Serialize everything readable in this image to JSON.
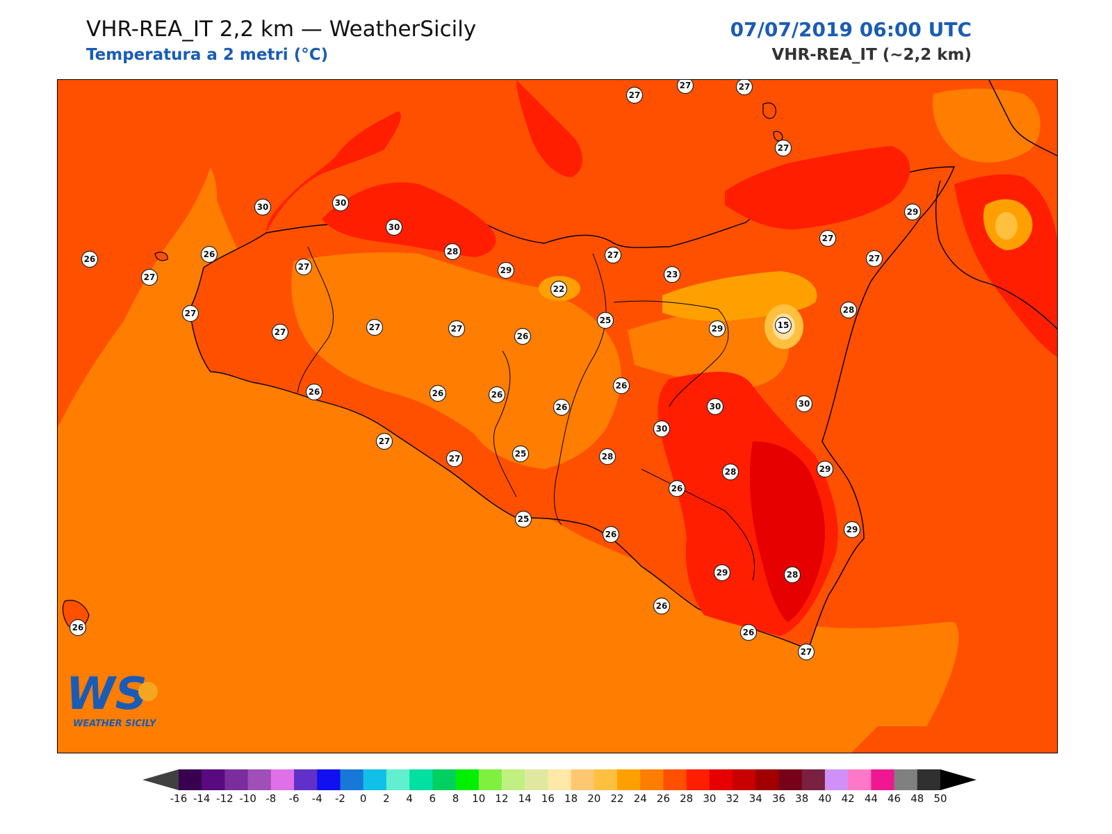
{
  "header": {
    "title": "VHR-REA_IT 2,2 km — WeatherSicily",
    "subtitle": "Temperatura a 2 metri (°C)",
    "datetime": "07/07/2019 06:00 UTC",
    "model": "VHR-REA_IT (~2,2 km)"
  },
  "logo": {
    "letters": "WS",
    "name": "WEATHER SICILY"
  },
  "colors": {
    "sea_base": "#ff5000",
    "warm_band": "#ff7d00",
    "hot": "#ff1e00",
    "very_hot": "#e60000",
    "cool": "#ffa000",
    "cooler": "#ffc040",
    "coolest": "#ffe0a0"
  },
  "colorbar": {
    "labels": [
      "-16",
      "-14",
      "-12",
      "-10",
      "-8",
      "-6",
      "-4",
      "-2",
      "0",
      "2",
      "4",
      "6",
      "8",
      "10",
      "12",
      "14",
      "16",
      "18",
      "20",
      "22",
      "24",
      "26",
      "28",
      "30",
      "32",
      "34",
      "36",
      "38",
      "40",
      "42",
      "44",
      "46",
      "48",
      "50"
    ],
    "colors": [
      "#3a0050",
      "#5a0a80",
      "#7b2d9e",
      "#a04fb8",
      "#e070e8",
      "#6030c8",
      "#1010f0",
      "#1878d8",
      "#10c0e8",
      "#60f0d0",
      "#00e0a0",
      "#00d060",
      "#00f000",
      "#80f040",
      "#c0f080",
      "#e0e8a0",
      "#ffe8a8",
      "#ffc870",
      "#ffc040",
      "#ffa000",
      "#ff7d00",
      "#ff5000",
      "#ff1e00",
      "#e60000",
      "#c80000",
      "#a00000",
      "#780018",
      "#7a2040",
      "#d090f8",
      "#ff78c8",
      "#f01890",
      "#808080",
      "#303030"
    ]
  },
  "stations": [
    {
      "value": "27"
    },
    {
      "value": "27"
    },
    {
      "value": "27"
    },
    {
      "value": "27"
    },
    {
      "value": "29"
    },
    {
      "value": "30"
    },
    {
      "value": "30"
    },
    {
      "value": "30"
    },
    {
      "value": "26"
    },
    {
      "value": "26"
    },
    {
      "value": "27"
    },
    {
      "value": "28"
    },
    {
      "value": "27"
    },
    {
      "value": "27"
    },
    {
      "value": "29"
    },
    {
      "value": "27"
    },
    {
      "value": "22"
    },
    {
      "value": "23"
    },
    {
      "value": "27"
    },
    {
      "value": "27"
    },
    {
      "value": "27"
    },
    {
      "value": "25"
    },
    {
      "value": "26"
    },
    {
      "value": "28"
    },
    {
      "value": "15"
    },
    {
      "value": "29"
    },
    {
      "value": "27"
    },
    {
      "value": "27"
    },
    {
      "value": "26"
    },
    {
      "value": "26"
    },
    {
      "value": "26"
    },
    {
      "value": "26"
    },
    {
      "value": "30"
    },
    {
      "value": "30"
    },
    {
      "value": "30"
    },
    {
      "value": "26"
    },
    {
      "value": "27"
    },
    {
      "value": "27"
    },
    {
      "value": "25"
    },
    {
      "value": "28"
    },
    {
      "value": "29"
    },
    {
      "value": "26"
    },
    {
      "value": "28"
    },
    {
      "value": "25"
    },
    {
      "value": "26"
    },
    {
      "value": "29"
    },
    {
      "value": "28"
    },
    {
      "value": "29"
    },
    {
      "value": "26"
    },
    {
      "value": "26"
    },
    {
      "value": "26"
    },
    {
      "value": "27"
    }
  ]
}
